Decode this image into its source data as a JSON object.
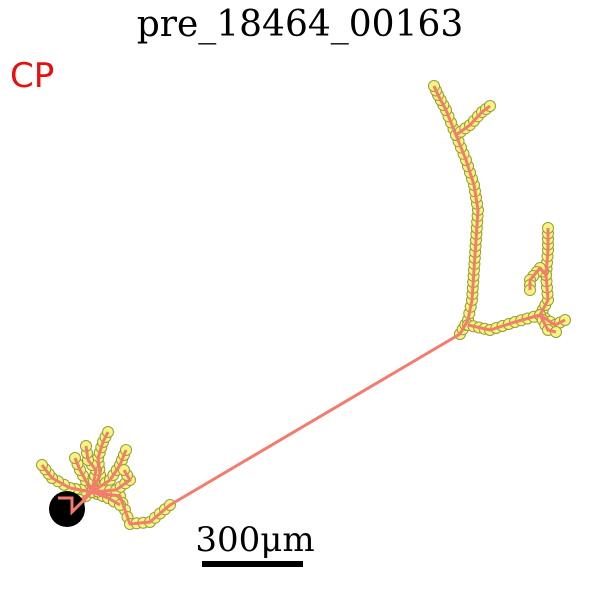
{
  "title": "pre_18464_00163",
  "region_label": "CP",
  "scale_bar": {
    "text": "300μm",
    "length_um": 300
  },
  "colors": {
    "region_label": "#e8100f",
    "neurite_line": "#f47c6e",
    "node_fill": "#f5f582",
    "node_stroke": "#9a9a3a",
    "soma": "#000000",
    "background": "#ffffff"
  },
  "legend": {
    "nodes": "node-marker",
    "soma": "soma-disc"
  }
}
